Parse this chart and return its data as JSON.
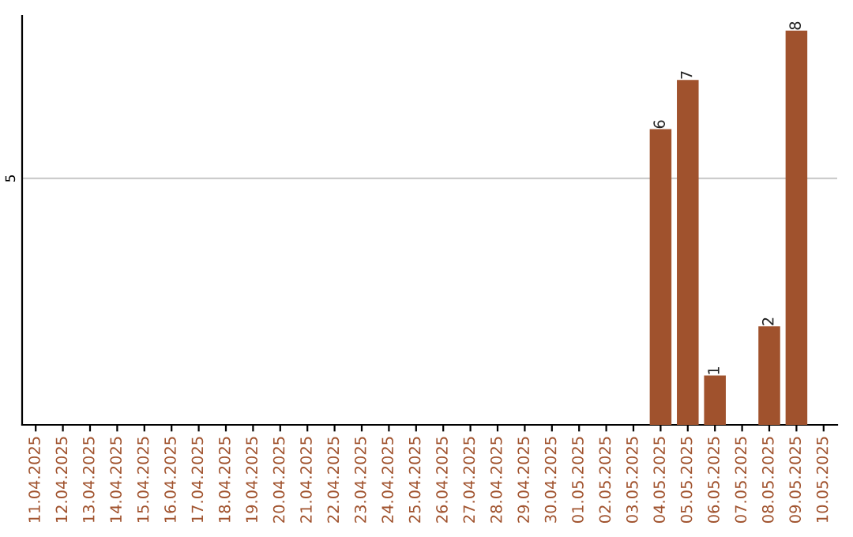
{
  "chart_data": {
    "type": "bar",
    "categories": [
      "11.04.2025",
      "12.04.2025",
      "13.04.2025",
      "14.04.2025",
      "15.04.2025",
      "16.04.2025",
      "17.04.2025",
      "18.04.2025",
      "19.04.2025",
      "20.04.2025",
      "21.04.2025",
      "22.04.2025",
      "23.04.2025",
      "24.04.2025",
      "25.04.2025",
      "26.04.2025",
      "27.04.2025",
      "28.04.2025",
      "29.04.2025",
      "30.04.2025",
      "01.05.2025",
      "02.05.2025",
      "03.05.2025",
      "04.05.2025",
      "05.05.2025",
      "06.05.2025",
      "07.05.2025",
      "08.05.2025",
      "09.05.2025",
      "10.05.2025"
    ],
    "values": [
      null,
      null,
      null,
      null,
      null,
      null,
      null,
      null,
      null,
      null,
      null,
      null,
      null,
      null,
      null,
      null,
      null,
      null,
      null,
      null,
      null,
      null,
      null,
      6,
      7,
      1,
      null,
      2,
      8,
      null
    ],
    "data_labels": true,
    "color": "#a0522d",
    "ylim": [
      0,
      8.3
    ],
    "yticks": [
      5
    ],
    "grid": "y"
  }
}
